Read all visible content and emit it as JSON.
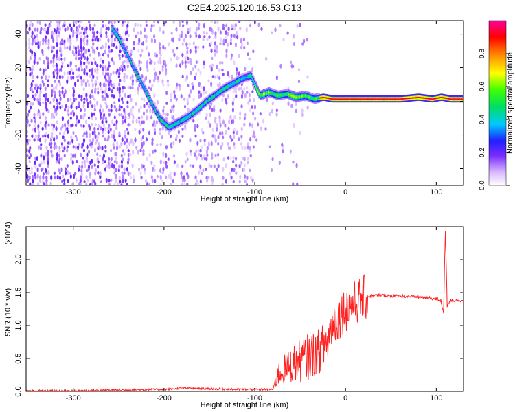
{
  "title": "C2E4.2025.120.16.53.G13",
  "chart_data": [
    {
      "type": "heatmap",
      "xlabel": "Height of straight line (km)",
      "ylabel": "Frequency (Hz)",
      "xlim": [
        -352,
        130
      ],
      "ylim": [
        -50,
        48
      ],
      "xticks": [
        -300,
        -200,
        -100,
        0,
        100
      ],
      "yticks": [
        -40,
        -20,
        0,
        20,
        40
      ],
      "colorbar": {
        "label": "Normalized spectral amplitude",
        "range": [
          0.0,
          1.0
        ],
        "ticks": [
          0.0,
          0.2,
          0.4,
          0.6,
          0.8
        ],
        "colormap": [
          "#ffffff",
          "#d9b8ff",
          "#7a2cff",
          "#2020ff",
          "#00c8ff",
          "#00e060",
          "#40ff00",
          "#ffff00",
          "#ff8000",
          "#ff0000",
          "#ff00a0"
        ]
      },
      "ridge": {
        "x": [
          -258,
          -250,
          -243,
          -237,
          -230,
          -222,
          -215,
          -205,
          -195,
          -185,
          -175,
          -165,
          -155,
          -145,
          -135,
          -125,
          -115,
          -105,
          -100,
          -95,
          -85,
          -75,
          -65,
          -55,
          -45,
          -35,
          -25,
          -15,
          -5,
          5,
          20,
          40,
          60,
          80,
          95,
          105,
          115,
          130
        ],
        "y": [
          44,
          38,
          30,
          24,
          16,
          8,
          0,
          -10,
          -15,
          -12,
          -9,
          -5,
          0,
          4,
          8,
          11,
          14,
          16,
          10,
          4,
          6,
          4,
          5,
          3,
          4,
          2,
          3,
          2,
          2,
          2,
          2,
          2,
          2,
          3,
          2,
          3,
          2,
          2
        ],
        "peak_amplitude": 0.95
      }
    },
    {
      "type": "line",
      "xlabel": "Height of straight line (km)",
      "ylabel": "SNR (10 * v/v)",
      "y_multiplier": "(x10^4)",
      "xlim": [
        -352,
        130
      ],
      "ylim": [
        0.0,
        2.5
      ],
      "xticks": [
        -300,
        -200,
        -100,
        0,
        100
      ],
      "yticks": [
        0.0,
        0.5,
        1.0,
        1.5,
        2.0
      ],
      "color": "#ff2020",
      "series": [
        {
          "x": [
            -352,
            -300,
            -250,
            -200,
            -180,
            -150,
            -120,
            -100,
            -80,
            -75,
            -60,
            -45,
            -30,
            -20,
            -15,
            -10,
            0,
            10,
            20,
            30,
            40,
            50,
            60,
            70,
            80,
            90,
            100,
            105,
            108,
            110,
            112,
            115,
            120,
            130
          ],
          "y": [
            0.01,
            0.01,
            0.02,
            0.03,
            0.05,
            0.04,
            0.03,
            0.03,
            0.03,
            0.25,
            0.4,
            0.5,
            0.6,
            0.75,
            1.0,
            1.1,
            1.25,
            1.35,
            1.42,
            1.45,
            1.46,
            1.45,
            1.45,
            1.44,
            1.43,
            1.42,
            1.4,
            1.38,
            1.2,
            2.45,
            1.3,
            1.38,
            1.38,
            1.38
          ]
        }
      ]
    }
  ]
}
